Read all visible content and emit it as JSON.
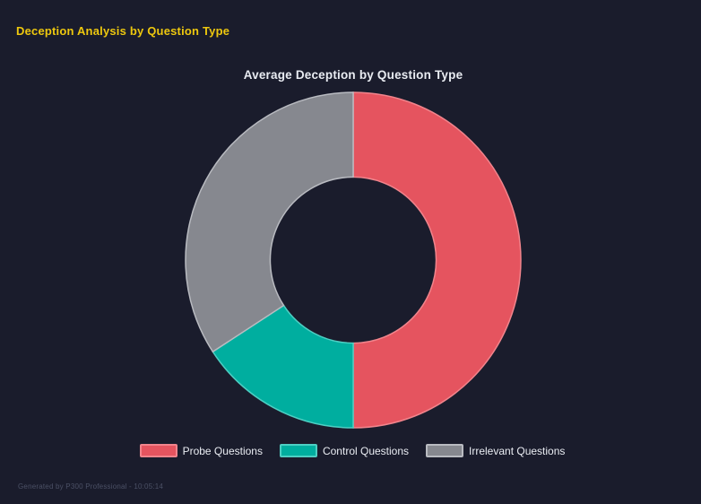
{
  "page": {
    "title": "Deception Analysis by Question Type",
    "title_color": "#eec80e",
    "background": "#1a1c2c",
    "footer": "Generated by P300 Professional - 10:05:14",
    "footer_color": "#4b5065"
  },
  "chart_data": {
    "type": "pie",
    "subtype": "donut",
    "title": "Average Deception by Question Type",
    "title_color": "#e9ecf2",
    "start_angle_deg": 0,
    "inner_radius_ratio": 0.495,
    "legend_position": "bottom",
    "categories": [
      "Probe Questions",
      "Control Questions",
      "Irrelevant Questions"
    ],
    "values_pct": [
      50.0,
      15.8,
      34.2
    ],
    "segments": [
      {
        "label": "Probe Questions",
        "value_pct": 50.0,
        "color": "#e5545f",
        "border_color": "#f1848c"
      },
      {
        "label": "Control Questions",
        "value_pct": 15.8,
        "color": "#00ae9f",
        "border_color": "#4dcfc3"
      },
      {
        "label": "Irrelevant Questions",
        "value_pct": 34.2,
        "color": "#86888f",
        "border_color": "#b9bbc1"
      }
    ]
  }
}
